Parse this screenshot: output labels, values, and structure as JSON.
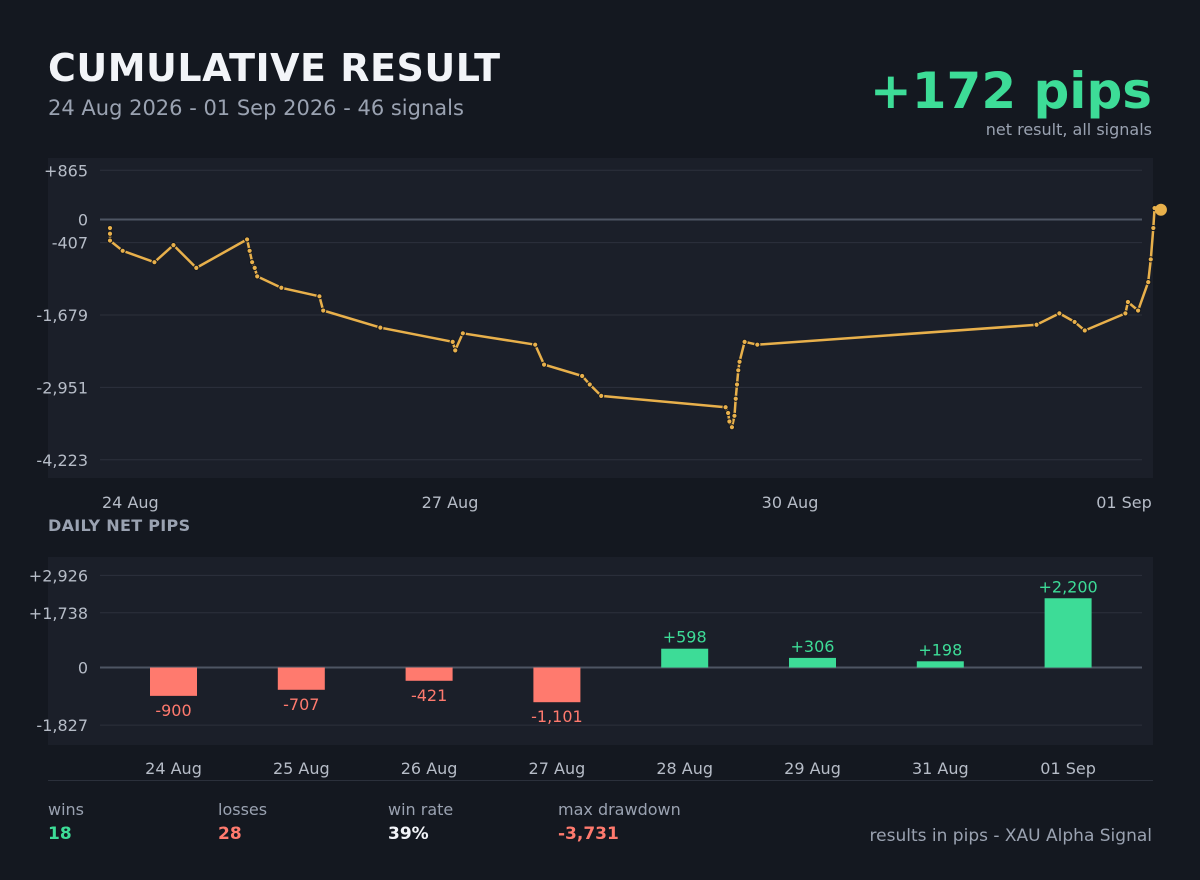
{
  "header": {
    "title": "CUMULATIVE RESULT",
    "subtitle": "24 Aug 2026 - 01 Sep 2026  -  46 signals",
    "net_value": "+172 pips",
    "net_caption": "net result, all signals"
  },
  "daily_section_title": "DAILY NET PIPS",
  "stats": [
    {
      "label": "wins",
      "value": "18",
      "color": "#3ddc97"
    },
    {
      "label": "losses",
      "value": "28",
      "color": "#ff7a6e"
    },
    {
      "label": "win rate",
      "value": "39%",
      "color": "#f2f4f8"
    },
    {
      "label": "max drawdown",
      "value": "-3,731",
      "color": "#ff7a6e"
    }
  ],
  "footer": "results in pips  -  XAU Alpha Signal",
  "colors": {
    "line": "#e8b04b",
    "positive": "#3ddc97",
    "negative": "#ff7a6e"
  },
  "chart_data": [
    {
      "type": "line",
      "name": "cumulative",
      "ylim": [
        -4543,
        1081
      ],
      "yticks": [
        865,
        0,
        -407,
        -1679,
        -2951,
        -4223
      ],
      "ytick_labels": [
        "+865",
        "0",
        "-407",
        "-1,679",
        "-2,951",
        "-4,223"
      ],
      "xlim": [
        0,
        8.06
      ],
      "xticks": [
        0,
        3,
        6,
        9
      ],
      "xtick_labels": [
        "24 Aug",
        "27 Aug",
        "30 Aug",
        "01 Sep"
      ],
      "x": [
        0.0,
        0.0,
        0.0,
        0.1,
        0.35,
        0.5,
        0.68,
        1.08,
        1.1,
        1.12,
        1.14,
        1.16,
        1.35,
        1.65,
        1.68,
        2.13,
        2.7,
        2.72,
        2.78,
        3.35,
        3.42,
        3.72,
        3.78,
        3.87,
        4.85,
        4.87,
        4.88,
        4.9,
        4.92,
        4.93,
        4.94,
        4.95,
        4.96,
        5.0,
        5.1,
        7.3,
        7.48,
        7.6,
        7.68,
        8.0,
        8.02,
        8.1,
        8.18,
        8.2,
        8.22,
        8.23
      ],
      "y": [
        -150,
        -250,
        -370,
        -550,
        -750,
        -450,
        -850,
        -350,
        -550,
        -750,
        -850,
        -1000,
        -1200,
        -1350,
        -1600,
        -1900,
        -2150,
        -2300,
        -2000,
        -2200,
        -2550,
        -2750,
        -2900,
        -3100,
        -3300,
        -3400,
        -3550,
        -3650,
        -3450,
        -3150,
        -2900,
        -2650,
        -2500,
        -2150,
        -2200,
        -1850,
        -1650,
        -1800,
        -1950,
        -1650,
        -1450,
        -1600,
        -1100,
        -700,
        -150,
        200
      ],
      "final_point": {
        "x": 8.28,
        "y": 172
      }
    },
    {
      "type": "bar",
      "name": "daily",
      "title": "DAILY NET PIPS",
      "categories": [
        "24 Aug",
        "25 Aug",
        "26 Aug",
        "27 Aug",
        "28 Aug",
        "29 Aug",
        "31 Aug",
        "01 Sep"
      ],
      "values": [
        -900,
        -707,
        -421,
        -1101,
        598,
        306,
        198,
        2200
      ],
      "value_labels": [
        "-900",
        "-707",
        "-421",
        "-1,101",
        "+598",
        "+306",
        "+198",
        "+2,200"
      ],
      "ylim": [
        -2460,
        3510
      ],
      "yticks": [
        2926,
        1738,
        0,
        -1827
      ],
      "ytick_labels": [
        "+2,926",
        "+1,738",
        "0",
        "-1,827"
      ]
    }
  ]
}
